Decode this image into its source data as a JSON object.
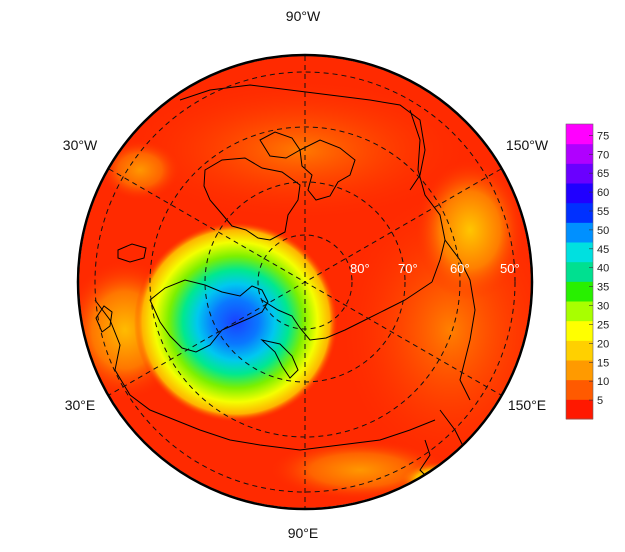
{
  "map": {
    "projection": "north-polar-stereographic",
    "longitude_labels": {
      "top": "90°W",
      "upper_left": "30°W",
      "upper_right": "150°W",
      "lower_left": "30°E",
      "lower_right": "150°E",
      "bottom": "90°E"
    },
    "latitude_labels": [
      "80°",
      "70°",
      "60°",
      "50°"
    ],
    "graticule": "dashed"
  },
  "colorbar": {
    "ticks": [
      "5",
      "10",
      "15",
      "20",
      "25",
      "30",
      "35",
      "40",
      "45",
      "50",
      "55",
      "60",
      "65",
      "70",
      "75"
    ],
    "min": 0,
    "max": 78,
    "colors": [
      "#ff1800",
      "#ff5a00",
      "#ff9a00",
      "#ffd000",
      "#ffff00",
      "#a8ff00",
      "#28f000",
      "#00e090",
      "#00e0e0",
      "#0090ff",
      "#0030ff",
      "#2000ff",
      "#6a00ff",
      "#b000ff",
      "#ff00ff"
    ]
  },
  "field_summary": {
    "background_level": 3,
    "features": [
      {
        "region": "Scandinavia / Barents",
        "peak": 55
      },
      {
        "region": "Eastern Arctic Ocean",
        "peak": 12
      },
      {
        "region": "Greenland west coast",
        "peak": 8
      }
    ]
  }
}
